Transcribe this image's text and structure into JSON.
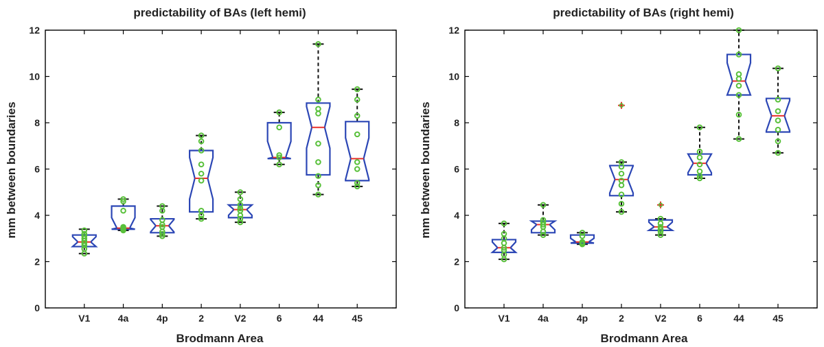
{
  "colors": {
    "box": "#2b46b5",
    "median": "#e8302a",
    "whisker": "#111111",
    "points": "#58c03a",
    "outlier": "#e8302a"
  },
  "chart_data": [
    {
      "type": "boxplot",
      "title": "predictability of BAs (left hemi)",
      "xlabel": "Brodmann Area",
      "ylabel": "mm between boundaries",
      "ylim": [
        0,
        12
      ],
      "yticks": [
        "0",
        "2",
        "4",
        "6",
        "8",
        "10",
        "12"
      ],
      "categories": [
        "V1",
        "4a",
        "4p",
        "2",
        "V2",
        "6",
        "44",
        "45"
      ],
      "notched": true,
      "grid": false,
      "boxes": [
        {
          "min": 2.35,
          "q1": 2.65,
          "median": 2.85,
          "q3": 3.15,
          "max": 3.4,
          "outliers": [],
          "points": [
            2.35,
            2.55,
            2.7,
            2.8,
            2.9,
            3.0,
            3.1,
            3.2,
            3.35
          ]
        },
        {
          "min": 3.35,
          "q1": 3.4,
          "median": 3.45,
          "q3": 4.4,
          "max": 4.7,
          "outliers": [],
          "points": [
            3.35,
            3.4,
            3.45,
            3.5,
            4.2,
            4.6,
            4.7
          ]
        },
        {
          "min": 3.1,
          "q1": 3.25,
          "median": 3.55,
          "q3": 3.85,
          "max": 4.4,
          "outliers": [],
          "points": [
            3.1,
            3.2,
            3.3,
            3.5,
            3.6,
            3.8,
            4.2,
            4.4
          ]
        },
        {
          "min": 3.85,
          "q1": 4.15,
          "median": 5.6,
          "q3": 6.8,
          "max": 7.45,
          "outliers": [],
          "points": [
            3.85,
            4.0,
            4.2,
            5.5,
            5.8,
            6.2,
            6.8,
            7.2,
            7.45
          ]
        },
        {
          "min": 3.7,
          "q1": 3.9,
          "median": 4.25,
          "q3": 4.45,
          "max": 5.0,
          "outliers": [],
          "points": [
            3.7,
            3.85,
            4.0,
            4.2,
            4.3,
            4.45,
            4.7,
            5.0
          ]
        },
        {
          "min": 6.2,
          "q1": 6.45,
          "median": 6.5,
          "q3": 8.0,
          "max": 8.45,
          "outliers": [],
          "points": [
            6.2,
            6.5,
            6.6,
            7.8,
            8.45
          ]
        },
        {
          "min": 4.9,
          "q1": 5.75,
          "median": 7.8,
          "q3": 8.85,
          "max": 11.4,
          "outliers": [],
          "points": [
            4.9,
            5.3,
            5.7,
            6.3,
            7.1,
            8.4,
            8.6,
            9.0,
            11.4
          ]
        },
        {
          "min": 5.25,
          "q1": 5.5,
          "median": 6.45,
          "q3": 8.05,
          "max": 9.45,
          "outliers": [],
          "points": [
            5.25,
            5.4,
            6.0,
            6.3,
            7.5,
            8.3,
            9.0,
            9.45
          ]
        }
      ]
    },
    {
      "type": "boxplot",
      "title": "predictability of BAs (right hemi)",
      "xlabel": "Brodmann Area",
      "ylabel": "mm between boundaries",
      "ylim": [
        0,
        12
      ],
      "yticks": [
        "0",
        "2",
        "4",
        "6",
        "8",
        "10",
        "12"
      ],
      "categories": [
        "V1",
        "4a",
        "4p",
        "2",
        "V2",
        "6",
        "44",
        "45"
      ],
      "notched": true,
      "grid": false,
      "boxes": [
        {
          "min": 2.1,
          "q1": 2.4,
          "median": 2.6,
          "q3": 2.95,
          "max": 3.65,
          "outliers": [],
          "points": [
            2.1,
            2.3,
            2.5,
            2.6,
            2.8,
            3.0,
            3.2,
            3.65
          ]
        },
        {
          "min": 3.15,
          "q1": 3.25,
          "median": 3.6,
          "q3": 3.75,
          "max": 4.45,
          "outliers": [],
          "points": [
            3.15,
            3.3,
            3.5,
            3.6,
            3.7,
            3.8,
            4.45
          ]
        },
        {
          "min": 2.75,
          "q1": 2.8,
          "median": 2.85,
          "q3": 3.15,
          "max": 3.25,
          "outliers": [],
          "points": [
            2.75,
            2.8,
            2.85,
            3.1,
            3.25
          ]
        },
        {
          "min": 4.15,
          "q1": 4.85,
          "median": 5.55,
          "q3": 6.15,
          "max": 6.3,
          "outliers": [
            8.75
          ],
          "points": [
            4.15,
            4.5,
            4.9,
            5.3,
            5.5,
            5.8,
            6.1,
            6.3
          ]
        },
        {
          "min": 3.15,
          "q1": 3.35,
          "median": 3.5,
          "q3": 3.8,
          "max": 3.85,
          "outliers": [
            4.45
          ],
          "points": [
            3.15,
            3.3,
            3.4,
            3.5,
            3.65,
            3.85
          ]
        },
        {
          "min": 5.6,
          "q1": 5.75,
          "median": 6.25,
          "q3": 6.65,
          "max": 7.8,
          "outliers": [],
          "points": [
            5.6,
            5.7,
            5.9,
            6.2,
            6.5,
            6.75,
            7.8
          ]
        },
        {
          "min": 7.3,
          "q1": 9.2,
          "median": 9.8,
          "q3": 10.95,
          "max": 12.0,
          "outliers": [],
          "points": [
            7.3,
            8.35,
            9.2,
            9.6,
            9.9,
            10.1,
            10.95,
            12.0
          ]
        },
        {
          "min": 6.7,
          "q1": 7.6,
          "median": 8.3,
          "q3": 9.05,
          "max": 10.35,
          "outliers": [],
          "points": [
            6.7,
            7.2,
            7.7,
            8.1,
            8.5,
            9.0,
            10.35
          ]
        }
      ]
    }
  ]
}
